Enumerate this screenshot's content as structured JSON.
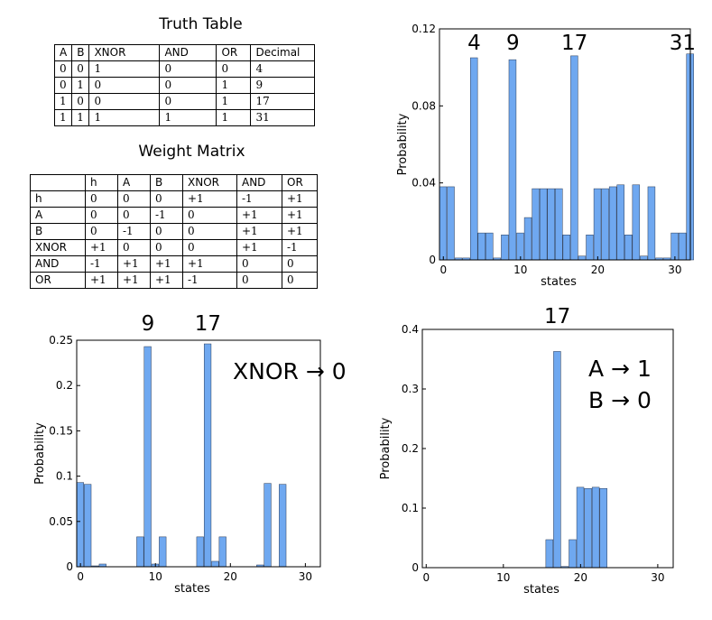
{
  "truth_table": {
    "title": "Truth Table",
    "headers": [
      "A",
      "B",
      "XNOR",
      "AND",
      "OR",
      "Decimal"
    ],
    "rows": [
      [
        "0",
        "0",
        "1",
        "0",
        "0",
        "4"
      ],
      [
        "0",
        "1",
        "0",
        "0",
        "1",
        "9"
      ],
      [
        "1",
        "0",
        "0",
        "0",
        "1",
        "17"
      ],
      [
        "1",
        "1",
        "1",
        "1",
        "1",
        "31"
      ]
    ]
  },
  "weight_matrix": {
    "title": "Weight Matrix",
    "headers": [
      "",
      "h",
      "A",
      "B",
      "XNOR",
      "AND",
      "OR"
    ],
    "rows": [
      [
        "h",
        "0",
        "0",
        "0",
        "+1",
        "-1",
        "+1"
      ],
      [
        "A",
        "0",
        "0",
        "-1",
        "0",
        "+1",
        "+1"
      ],
      [
        "B",
        "0",
        "-1",
        "0",
        "0",
        "+1",
        "+1"
      ],
      [
        "XNOR",
        "+1",
        "0",
        "0",
        "0",
        "+1",
        "-1"
      ],
      [
        "AND",
        "-1",
        "+1",
        "+1",
        "+1",
        "0",
        "0"
      ],
      [
        "OR",
        "+1",
        "+1",
        "+1",
        "-1",
        "0",
        "0"
      ]
    ]
  },
  "colors": {
    "bar": "#6fa8f0",
    "bar_edge": "#2a3a55",
    "axis": "#000000"
  },
  "chart_data": [
    {
      "id": "top-right",
      "type": "bar",
      "xlabel": "states",
      "ylabel": "Probability",
      "xlim": [
        -0.5,
        32
      ],
      "ylim": [
        0,
        0.12
      ],
      "xticks": [
        0,
        10,
        20,
        30
      ],
      "yticks": [
        0,
        0.04,
        0.08,
        0.12
      ],
      "ytick_labels": [
        "0",
        "0.04",
        "0.08",
        "0.12"
      ],
      "values": [
        0.038,
        0.038,
        0.001,
        0.001,
        0.105,
        0.014,
        0.014,
        0.001,
        0.013,
        0.104,
        0.014,
        0.022,
        0.037,
        0.037,
        0.037,
        0.037,
        0.013,
        0.106,
        0.002,
        0.013,
        0.037,
        0.037,
        0.038,
        0.039,
        0.013,
        0.039,
        0.002,
        0.038,
        0.001,
        0.001,
        0.014,
        0.014,
        0.107
      ],
      "peak_labels": [
        {
          "x": 4,
          "text": "4"
        },
        {
          "x": 9,
          "text": "9"
        },
        {
          "x": 17,
          "text": "17"
        },
        {
          "x": 31,
          "text": "31"
        }
      ],
      "annotation": []
    },
    {
      "id": "bottom-left",
      "type": "bar",
      "xlabel": "states",
      "ylabel": "Probability",
      "xlim": [
        -0.5,
        32
      ],
      "ylim": [
        0,
        0.25
      ],
      "xticks": [
        0,
        10,
        20,
        30
      ],
      "yticks": [
        0,
        0.05,
        0.1,
        0.15,
        0.2,
        0.25
      ],
      "ytick_labels": [
        "0",
        "0.05",
        "0.1",
        "0.15",
        "0.2",
        "0.25"
      ],
      "values": [
        0.093,
        0.091,
        0.001,
        0.003,
        0,
        0,
        0,
        0,
        0.033,
        0.243,
        0.003,
        0.033,
        0,
        0,
        0,
        0,
        0.033,
        0.246,
        0.006,
        0.033,
        0,
        0,
        0,
        0,
        0.002,
        0.092,
        0,
        0.091,
        0,
        0,
        0,
        0,
        0
      ],
      "peak_labels": [
        {
          "x": 9,
          "text": "9"
        },
        {
          "x": 17,
          "text": "17"
        }
      ],
      "annotation": [
        "XNOR → 0"
      ]
    },
    {
      "id": "bottom-right",
      "type": "bar",
      "xlabel": "states",
      "ylabel": "Probability",
      "xlim": [
        -0.5,
        32
      ],
      "ylim": [
        0,
        0.4
      ],
      "xticks": [
        0,
        10,
        20,
        30
      ],
      "yticks": [
        0,
        0.1,
        0.2,
        0.3,
        0.4
      ],
      "ytick_labels": [
        "0",
        "0.1",
        "0.2",
        "0.3",
        "0.4"
      ],
      "values": [
        0,
        0,
        0,
        0,
        0,
        0,
        0,
        0,
        0,
        0,
        0,
        0,
        0,
        0,
        0,
        0,
        0.047,
        0.363,
        0.002,
        0.047,
        0.135,
        0.133,
        0.135,
        0.133,
        0,
        0,
        0,
        0,
        0,
        0,
        0,
        0,
        0
      ],
      "peak_labels": [
        {
          "x": 17,
          "text": "17"
        }
      ],
      "annotation": [
        "A → 1",
        "B → 0"
      ]
    }
  ]
}
